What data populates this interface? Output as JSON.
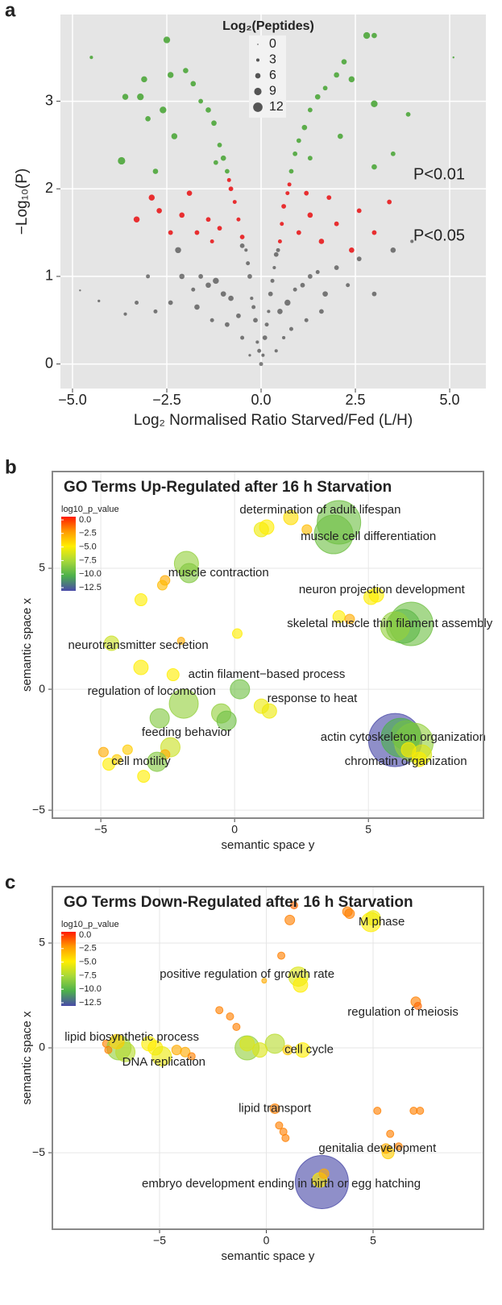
{
  "chart_data": [
    {
      "panel": "a",
      "type": "scatter",
      "xlabel": "Log₂ Normalised Ratio Starved/Fed (L/H)",
      "ylabel": "−Log₁₀(P)",
      "xlim": [
        -5.32,
        5.96
      ],
      "ylim": [
        -0.28,
        3.99
      ],
      "xticks": [
        {
          "value": -5,
          "label": "−5.0"
        },
        {
          "value": -2.5,
          "label": "−2.5"
        },
        {
          "value": 0,
          "label": "0.0"
        },
        2.5,
        {
          "value": 5,
          "label": "5.0"
        }
      ],
      "yticks": [
        0,
        1,
        2,
        3
      ],
      "grid": true,
      "size_legend": {
        "title": "Log₂(Peptides)",
        "values": [
          0,
          3,
          6,
          9,
          12
        ]
      },
      "series": [
        {
          "color": "#1a1a1a",
          "x": [
            0,
            0.05,
            -0.05,
            0.1,
            -0.1,
            0.15,
            -0.15,
            0.2,
            -0.2,
            0.25,
            -0.25,
            0.3,
            -0.3,
            0.35,
            -0.35,
            0.4,
            -0.4,
            0.45,
            -0.5,
            0.5,
            -0.6,
            0.7,
            -0.8,
            0.9,
            -1.0,
            1.1,
            -1.2,
            1.3,
            -1.4,
            1.5,
            -1.6,
            1.7,
            -1.8,
            2.0,
            -2.1,
            2.3,
            -2.4,
            0.6,
            -0.5,
            0.8,
            -0.9,
            1.2,
            -1.3,
            -2.2,
            2.6,
            -2.8,
            3.0,
            -3.3,
            3.5,
            -3.6,
            -4.3,
            -4.8,
            4.0,
            -3.0,
            0.4,
            -0.3,
            1.6,
            -1.7
          ],
          "y": [
            0,
            0.1,
            0.15,
            0.3,
            0.25,
            0.45,
            0.5,
            0.6,
            0.65,
            0.8,
            0.75,
            0.95,
            1.0,
            1.1,
            1.15,
            1.25,
            1.3,
            1.3,
            1.35,
            0.6,
            0.55,
            0.7,
            0.75,
            0.85,
            0.8,
            0.9,
            0.95,
            1.0,
            0.9,
            1.05,
            1.0,
            0.8,
            0.85,
            1.1,
            1.0,
            0.9,
            0.7,
            0.3,
            0.3,
            0.4,
            0.45,
            0.5,
            0.5,
            1.3,
            1.2,
            0.6,
            0.8,
            0.7,
            1.3,
            0.57,
            0.72,
            0.84,
            1.4,
            1.0,
            0.15,
            0.1,
            0.6,
            0.65
          ],
          "sizes": [
            4,
            3,
            4,
            5,
            3,
            4,
            5,
            3,
            4,
            5,
            3,
            4,
            5,
            3,
            4,
            5,
            3,
            4,
            5,
            6,
            5,
            7,
            6,
            4,
            6,
            5,
            7,
            5,
            6,
            4,
            5,
            6,
            4,
            5,
            6,
            4,
            5,
            3,
            4,
            4,
            5,
            4,
            4,
            7,
            5,
            4,
            5,
            4,
            6,
            3,
            2,
            1,
            3,
            4,
            3,
            2,
            5,
            6
          ]
        },
        {
          "name": "P<0.05",
          "color": "#e8191c",
          "x": [
            0.5,
            -0.5,
            0.55,
            -0.6,
            0.6,
            -0.7,
            0.7,
            -0.8,
            0.75,
            -0.85,
            1.0,
            -1.1,
            1.3,
            -1.4,
            1.6,
            -1.7,
            2.0,
            -2.1,
            1.8,
            -1.9,
            -2.7,
            -2.9,
            -3.3,
            2.4,
            3.0,
            3.4,
            -1.3,
            1.2,
            2.6,
            -2.4
          ],
          "y": [
            1.4,
            1.45,
            1.6,
            1.65,
            1.8,
            1.85,
            1.95,
            2.0,
            2.05,
            2.1,
            1.5,
            1.55,
            1.7,
            1.65,
            1.4,
            1.5,
            1.6,
            1.7,
            1.9,
            1.95,
            1.75,
            1.9,
            1.65,
            1.3,
            1.5,
            1.85,
            1.4,
            1.95,
            1.75,
            1.5
          ],
          "sizes": [
            4,
            5,
            4,
            4,
            5,
            4,
            4,
            5,
            4,
            4,
            5,
            5,
            6,
            5,
            6,
            5,
            5,
            6,
            5,
            6,
            6,
            7,
            7,
            6,
            5,
            5,
            4,
            5,
            5,
            5
          ]
        },
        {
          "name": "P<0.01",
          "color": "#4ca63a",
          "x": [
            0.8,
            -0.9,
            0.9,
            -1.0,
            1.0,
            -1.1,
            1.15,
            -1.25,
            1.3,
            -1.4,
            1.5,
            -1.6,
            1.7,
            -1.8,
            2.0,
            -2.0,
            2.2,
            -2.4,
            -2.5,
            2.8,
            3.0,
            2.4,
            -3.1,
            -3.6,
            -3.2,
            3.0,
            -3.7,
            3.9,
            3.0,
            -4.5,
            5.1,
            -3.0,
            -2.3,
            2.1,
            -1.2,
            1.3,
            3.5,
            -2.8,
            -2.6
          ],
          "y": [
            2.2,
            2.2,
            2.4,
            2.35,
            2.55,
            2.5,
            2.7,
            2.75,
            2.9,
            2.9,
            3.05,
            3.0,
            3.15,
            3.2,
            3.3,
            3.35,
            3.45,
            3.3,
            3.7,
            3.75,
            3.75,
            3.25,
            3.25,
            3.05,
            3.05,
            2.97,
            2.32,
            2.85,
            2.25,
            3.5,
            3.5,
            2.8,
            2.6,
            2.6,
            2.3,
            2.35,
            2.4,
            2.2,
            2.9
          ],
          "sizes": [
            5,
            5,
            5,
            6,
            5,
            5,
            6,
            6,
            5,
            6,
            6,
            5,
            5,
            6,
            6,
            6,
            6,
            7,
            8,
            8,
            6,
            7,
            7,
            7,
            8,
            8,
            9,
            5,
            6,
            3,
            1,
            6,
            7,
            6,
            5,
            5,
            5,
            6,
            8
          ]
        }
      ]
    },
    {
      "panel": "b",
      "type": "bubble",
      "title": "GO Terms Up-Regulated after 16 h Starvation",
      "xlabel": "semantic space y",
      "ylabel": "semantic space x",
      "xlim": [
        -6.81,
        9.3
      ],
      "ylim": [
        -5.33,
        9.0
      ],
      "xticks": [
        {
          "value": -5,
          "label": "−5"
        },
        0,
        5
      ],
      "yticks": [
        {
          "value": -5,
          "label": "−5"
        },
        0,
        5
      ],
      "grid": true,
      "colorbar": {
        "title": "log10_p_value",
        "ticks": [
          {
            "value": 0,
            "label": "0.0"
          },
          {
            "value": -2.5,
            "label": "−2.5"
          },
          {
            "value": -5,
            "label": "−5.0"
          },
          {
            "value": -7.5,
            "label": "−7.5"
          },
          {
            "value": -10,
            "label": "−10.0"
          },
          {
            "value": -12.5,
            "label": "−12.5"
          }
        ],
        "colors": [
          "#ff1a00",
          "#ff9a00",
          "#ffee00",
          "#a6d83a",
          "#4cb04c",
          "#4a4aa8"
        ]
      },
      "points": {
        "x": [
          3.9,
          3.7,
          1.0,
          1.2,
          2.1,
          2.7,
          -1.8,
          -1.7,
          -2.6,
          -2.7,
          -3.5,
          5.3,
          5.1,
          3.9,
          4.3,
          6.6,
          6.3,
          6.0,
          -4.6,
          -2.0,
          0.1,
          -3.5,
          -2.3,
          -1.9,
          -2.8,
          0.2,
          -0.5,
          -0.3,
          1.0,
          1.3,
          -2.4,
          -2.6,
          -2.9,
          -4.9,
          -4.4,
          -4.7,
          -3.4,
          -4.0,
          6.0,
          6.2,
          6.7,
          6.4,
          7.0,
          6.9,
          6.5
        ],
        "y": [
          6.9,
          6.4,
          6.6,
          6.7,
          7.1,
          6.6,
          5.2,
          4.8,
          4.5,
          4.3,
          3.7,
          3.9,
          3.8,
          3.0,
          2.9,
          2.7,
          2.6,
          2.6,
          1.9,
          2.0,
          2.3,
          0.9,
          0.6,
          -0.6,
          -1.2,
          0,
          -1.0,
          -1.3,
          -0.7,
          -0.9,
          -2.4,
          -2.7,
          -3.0,
          -2.6,
          -2.9,
          -3.1,
          -3.6,
          -2.5,
          -2.1,
          -2.0,
          -2.2,
          -1.9,
          -2.7,
          -2.9,
          -2.5
        ],
        "size": [
          9,
          8,
          3,
          3,
          3,
          2,
          5,
          4,
          2,
          2,
          2.5,
          3,
          3,
          2.5,
          2,
          9,
          7,
          6,
          3,
          1.5,
          2,
          3,
          2.5,
          6,
          4,
          4,
          4,
          4,
          3,
          3,
          4,
          2,
          4,
          2,
          2,
          2.5,
          2.5,
          2,
          11,
          8,
          8,
          6,
          4,
          3,
          3
        ],
        "log10_p_value": [
          -9,
          -9,
          -5.5,
          -5,
          -4.5,
          -3.5,
          -8,
          -8.5,
          -3,
          -3.5,
          -5,
          -5,
          -5,
          -5,
          -3,
          -9,
          -9.5,
          -8,
          -6.5,
          -3,
          -5,
          -5,
          -5,
          -8,
          -8.5,
          -9,
          -8,
          -9,
          -5.5,
          -5.5,
          -6.5,
          -3,
          -8.5,
          -3,
          -4,
          -5,
          -5,
          -4,
          -12.5,
          -10,
          -8,
          -9,
          -6,
          -5,
          -5
        ]
      },
      "labels": [
        {
          "text": "determination of adult lifespan",
          "x": 3.2,
          "y": 7.4
        },
        {
          "text": "muscle cell differentiation",
          "x": 5.0,
          "y": 6.3
        },
        {
          "text": "muscle contraction",
          "x": -0.6,
          "y": 4.8
        },
        {
          "text": "neuron projection development",
          "x": 5.5,
          "y": 4.1
        },
        {
          "text": "skeletal muscle thin filament assembly",
          "x": 5.8,
          "y": 2.7
        },
        {
          "text": "neurotransmitter secretion",
          "x": -3.6,
          "y": 1.8
        },
        {
          "text": "actin filament−based process",
          "x": 1.2,
          "y": 0.6
        },
        {
          "text": "regulation of locomotion",
          "x": -3.1,
          "y": -0.1
        },
        {
          "text": "response to heat",
          "x": 2.9,
          "y": -0.4
        },
        {
          "text": "feeding behavior",
          "x": -1.8,
          "y": -1.8
        },
        {
          "text": "actin cytoskeleton organization",
          "x": 6.3,
          "y": -2.0
        },
        {
          "text": "chromatin organization",
          "x": 6.4,
          "y": -3.0
        },
        {
          "text": "cell motility",
          "x": -3.5,
          "y": -3.0
        }
      ]
    },
    {
      "panel": "c",
      "type": "bubble",
      "title": "GO Terms Down-Regulated after 16 h Starvation",
      "xlabel": "semantic space y",
      "ylabel": "semantic space x",
      "xlim": [
        -10.02,
        10.17
      ],
      "ylim": [
        -8.65,
        7.69
      ],
      "xticks": [
        {
          "value": -5,
          "label": "−5"
        },
        0,
        5
      ],
      "yticks": [
        {
          "value": -5,
          "label": "−5"
        },
        0,
        5
      ],
      "grid": true,
      "colorbar": {
        "title": "log10_p_value",
        "ticks": [
          {
            "value": 0,
            "label": "0.0"
          },
          {
            "value": -2.5,
            "label": "−2.5"
          },
          {
            "value": -5,
            "label": "−5.0"
          },
          {
            "value": -7.5,
            "label": "−7.5"
          },
          {
            "value": -10,
            "label": "−10.0"
          },
          {
            "value": -12.5,
            "label": "−12.5"
          }
        ],
        "colors": [
          "#ff1a00",
          "#ff9a00",
          "#ffee00",
          "#a6d83a",
          "#4cb04c",
          "#4a4aa8"
        ]
      },
      "points": {
        "x": [
          4.9,
          5.0,
          3.8,
          3.9,
          1.3,
          1.1,
          0.7,
          1.5,
          1.6,
          -0.1,
          7.0,
          7.1,
          -2.2,
          -1.7,
          -1.4,
          -7.5,
          -6.9,
          -6.6,
          -7.0,
          -5.5,
          -5.2,
          -4.9,
          -4.2,
          -3.8,
          -3.5,
          -7.4,
          -0.9,
          0.4,
          -0.9,
          -0.3,
          1.7,
          1.0,
          0.4,
          0.6,
          0.8,
          0.9,
          5.7,
          5.6,
          6.2,
          5.2,
          5.8,
          6.9,
          7.2,
          2.6,
          2.5,
          2.7
        ],
        "y": [
          6.0,
          6.2,
          6.5,
          6.4,
          6.8,
          6.1,
          4.4,
          3.4,
          3.0,
          3.2,
          2.2,
          2.0,
          1.8,
          1.5,
          1.0,
          0.2,
          0,
          -0.2,
          0.3,
          0.2,
          0,
          -0.4,
          -0.1,
          -0.2,
          -0.4,
          -0.1,
          0,
          0.2,
          0.2,
          -0.1,
          -0.1,
          -0.1,
          -2.9,
          -3.7,
          -4.0,
          -4.3,
          -5.0,
          -4.8,
          -4.7,
          -3.0,
          -4.1,
          -3.0,
          -3.0,
          -6.4,
          -6.3,
          -6.0
        ],
        "size": [
          4,
          3,
          2,
          2,
          1.5,
          2,
          1.5,
          4,
          3,
          1,
          2,
          1.5,
          1.5,
          1.5,
          1.5,
          1.5,
          5,
          4,
          3,
          3,
          3,
          4,
          2,
          2,
          1.5,
          1.5,
          5,
          4,
          3,
          3,
          3,
          2,
          2,
          1.5,
          1.5,
          1.5,
          2.5,
          2,
          1.5,
          1.5,
          1.5,
          1.5,
          1.5,
          11,
          3,
          2
        ],
        "log10_p_value": [
          -5,
          -5.5,
          -2,
          -2,
          -1.5,
          -2,
          -2,
          -6,
          -5,
          -3,
          -2,
          -1.5,
          -2,
          -2,
          -2,
          -2,
          -8,
          -7,
          -4,
          -5,
          -5,
          -5.5,
          -3,
          -3,
          -2,
          -2,
          -8,
          -7,
          -6,
          -6,
          -5,
          -4,
          -2,
          -2,
          -2,
          -2,
          -4,
          -3,
          -2,
          -2,
          -2,
          -2,
          -2,
          -12.5,
          -5,
          -3
        ]
      },
      "labels": [
        {
          "text": "M phase",
          "x": 5.4,
          "y": 6.0
        },
        {
          "text": "positive regulation of growth rate",
          "x": -0.9,
          "y": 3.5
        },
        {
          "text": "regulation of meiosis",
          "x": 6.4,
          "y": 1.7
        },
        {
          "text": "lipid biosynthetic process",
          "x": -6.3,
          "y": 0.5
        },
        {
          "text": "DNA replication",
          "x": -4.8,
          "y": -0.7
        },
        {
          "text": "cell cycle",
          "x": 2.0,
          "y": -0.1
        },
        {
          "text": "lipid transport",
          "x": 0.4,
          "y": -2.9
        },
        {
          "text": "genitalia development",
          "x": 5.2,
          "y": -4.8
        },
        {
          "text": "embryo development ending in birth or egg hatching",
          "x": 0.7,
          "y": -6.5
        }
      ]
    }
  ]
}
